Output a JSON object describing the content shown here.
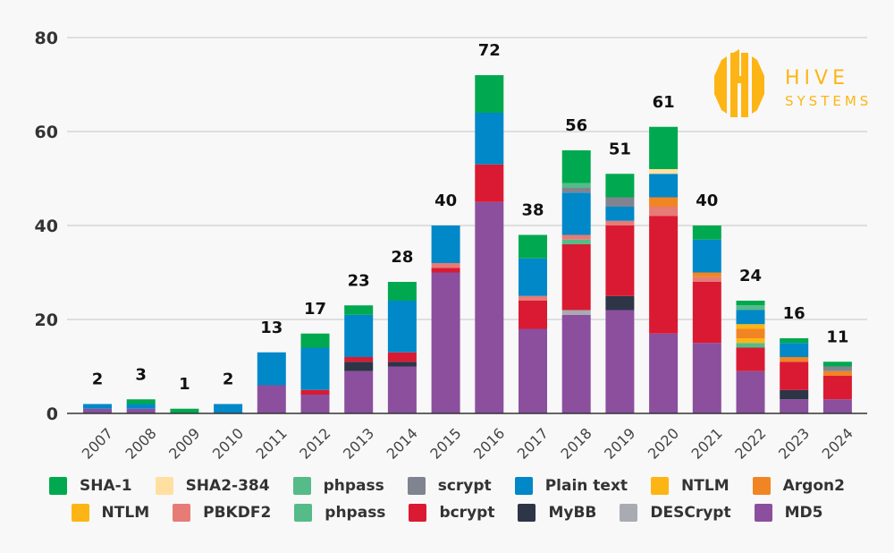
{
  "logo": {
    "line1": "HIVE",
    "line2": "SYSTEMS",
    "color": "#fdb515"
  },
  "chart_data": {
    "type": "bar",
    "stacked": true,
    "title": "",
    "xlabel": "",
    "ylabel": "",
    "ylim": [
      0,
      80
    ],
    "yticks": [
      "0",
      "20",
      "40",
      "60",
      "80"
    ],
    "grid": true,
    "legend_position": "bottom",
    "categories": [
      "2007",
      "2008",
      "2009",
      "2010",
      "2011",
      "2012",
      "2013",
      "2014",
      "2015",
      "2016",
      "2017",
      "2018",
      "2019",
      "2020",
      "2021",
      "2022",
      "2023",
      "2024"
    ],
    "totals": [
      2,
      3,
      1,
      2,
      13,
      17,
      23,
      28,
      40,
      72,
      38,
      56,
      51,
      61,
      40,
      24,
      16,
      11
    ],
    "series": [
      {
        "name": "SHA-1",
        "color": "#00a94f",
        "values": [
          0,
          1,
          1,
          0,
          0,
          3,
          2,
          4,
          0,
          8,
          5,
          7,
          5,
          9,
          3,
          1,
          1,
          1
        ]
      },
      {
        "name": "SHA2-384",
        "color": "#ffe0a0",
        "values": [
          0,
          0,
          0,
          0,
          0,
          0,
          0,
          0,
          0,
          0,
          0,
          0,
          0,
          1,
          0,
          0,
          0,
          0
        ]
      },
      {
        "name": "phpass",
        "color": "#55bb88",
        "values": [
          0,
          0,
          0,
          0,
          0,
          0,
          0,
          0,
          0,
          0,
          0,
          1,
          0,
          0,
          0,
          1,
          0,
          0
        ]
      },
      {
        "name": "scrypt",
        "color": "#7f8490",
        "values": [
          0,
          0,
          0,
          0,
          0,
          0,
          0,
          0,
          0,
          0,
          0,
          1,
          2,
          0,
          0,
          0,
          0,
          1
        ]
      },
      {
        "name": "Plain text",
        "color": "#0088c8",
        "values": [
          1,
          1,
          0,
          2,
          7,
          9,
          9,
          11,
          8,
          11,
          8,
          9,
          3,
          5,
          7,
          3,
          3,
          0
        ]
      },
      {
        "name": "NTLM",
        "color": "#fdb515",
        "values": [
          0,
          0,
          0,
          0,
          0,
          0,
          0,
          0,
          0,
          0,
          0,
          0,
          0,
          0,
          0,
          1,
          0,
          0
        ]
      },
      {
        "name": "Argon2",
        "color": "#f28523",
        "values": [
          0,
          0,
          0,
          0,
          0,
          0,
          0,
          0,
          0,
          0,
          0,
          0,
          0,
          2,
          1,
          2,
          1,
          1
        ]
      },
      {
        "name": "NTLM",
        "color": "#fdb515",
        "values": [
          0,
          0,
          0,
          0,
          0,
          0,
          0,
          0,
          0,
          0,
          0,
          0,
          0,
          0,
          0,
          1,
          0,
          0
        ]
      },
      {
        "name": "PBKDF2",
        "color": "#e77b75",
        "values": [
          0,
          0,
          0,
          0,
          0,
          0,
          0,
          0,
          1,
          0,
          1,
          1,
          1,
          2,
          1,
          0,
          0,
          0
        ]
      },
      {
        "name": "phpass",
        "color": "#55bb88",
        "values": [
          0,
          0,
          0,
          0,
          0,
          0,
          0,
          0,
          0,
          0,
          0,
          1,
          0,
          0,
          0,
          1,
          0,
          0
        ]
      },
      {
        "name": "bcrypt",
        "color": "#da1a32",
        "values": [
          0,
          0,
          0,
          0,
          0,
          1,
          1,
          2,
          1,
          8,
          6,
          14,
          15,
          25,
          13,
          5,
          6,
          5
        ]
      },
      {
        "name": "MyBB",
        "color": "#2d3547",
        "values": [
          0,
          0,
          0,
          0,
          0,
          0,
          2,
          1,
          0,
          0,
          0,
          0,
          3,
          0,
          0,
          0,
          2,
          0
        ]
      },
      {
        "name": "DESCrypt",
        "color": "#a9abb2",
        "values": [
          0,
          0,
          0,
          0,
          0,
          0,
          0,
          0,
          0,
          0,
          0,
          1,
          0,
          0,
          0,
          0,
          0,
          0
        ]
      },
      {
        "name": "MD5",
        "color": "#8b4f9e",
        "values": [
          1,
          1,
          0,
          0,
          6,
          4,
          9,
          10,
          30,
          45,
          18,
          21,
          22,
          17,
          15,
          9,
          3,
          3
        ]
      }
    ]
  }
}
